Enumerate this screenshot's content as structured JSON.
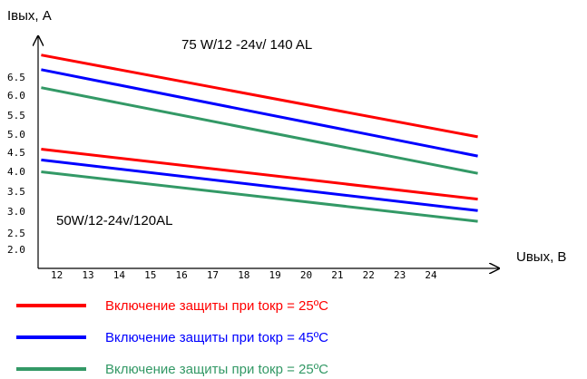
{
  "chart_data": {
    "type": "line",
    "ylabel": "Iвых, А",
    "xlabel": "Uвых, В",
    "x_ticks": [
      "12",
      "13",
      "14",
      "15",
      "16",
      "17",
      "18",
      "19",
      "20",
      "21",
      "22",
      "23",
      "24"
    ],
    "y_ticks": [
      "2.0",
      "2.5",
      "3.0",
      "3.5",
      "4.0",
      "4.5",
      "5.0",
      "5.5",
      "6.0",
      "6.5"
    ],
    "xlim": [
      11.4,
      25.6
    ],
    "ylim": [
      2.0,
      7.5
    ],
    "grid": false,
    "annotations": [
      {
        "id": "ann-75w",
        "text": "75 W/12  -24v/  140 AL"
      },
      {
        "id": "ann-50w",
        "text": "50W/12-24v/120AL"
      }
    ],
    "series": [
      {
        "group": "75W/12-24v/140AL",
        "color": "#ff0000",
        "x": [
          11.5,
          25.5
        ],
        "y": [
          7.2,
          5.07
        ]
      },
      {
        "group": "75W/12-24v/140AL",
        "color": "#0000ff",
        "x": [
          11.5,
          25.5
        ],
        "y": [
          6.82,
          4.57
        ]
      },
      {
        "group": "75W/12-24v/140AL",
        "color": "#339966",
        "x": [
          11.5,
          25.5
        ],
        "y": [
          6.35,
          4.12
        ]
      },
      {
        "group": "50W/12-24v/120AL",
        "color": "#ff0000",
        "x": [
          11.5,
          25.5
        ],
        "y": [
          4.75,
          3.45
        ]
      },
      {
        "group": "50W/12-24v/120AL",
        "color": "#0000ff",
        "x": [
          11.5,
          25.5
        ],
        "y": [
          4.47,
          3.15
        ]
      },
      {
        "group": "50W/12-24v/120AL",
        "color": "#339966",
        "x": [
          11.5,
          25.5
        ],
        "y": [
          4.16,
          2.87
        ]
      }
    ],
    "legend": [
      {
        "label": "Включение защиты при tокр  =  25ºC",
        "color": "#ff0000"
      },
      {
        "label": "Включение защиты при tокр  =  45ºC",
        "color": "#0000ff"
      },
      {
        "label": "Включение защиты при tокр  =  25ºC",
        "color": "#339966"
      }
    ]
  }
}
